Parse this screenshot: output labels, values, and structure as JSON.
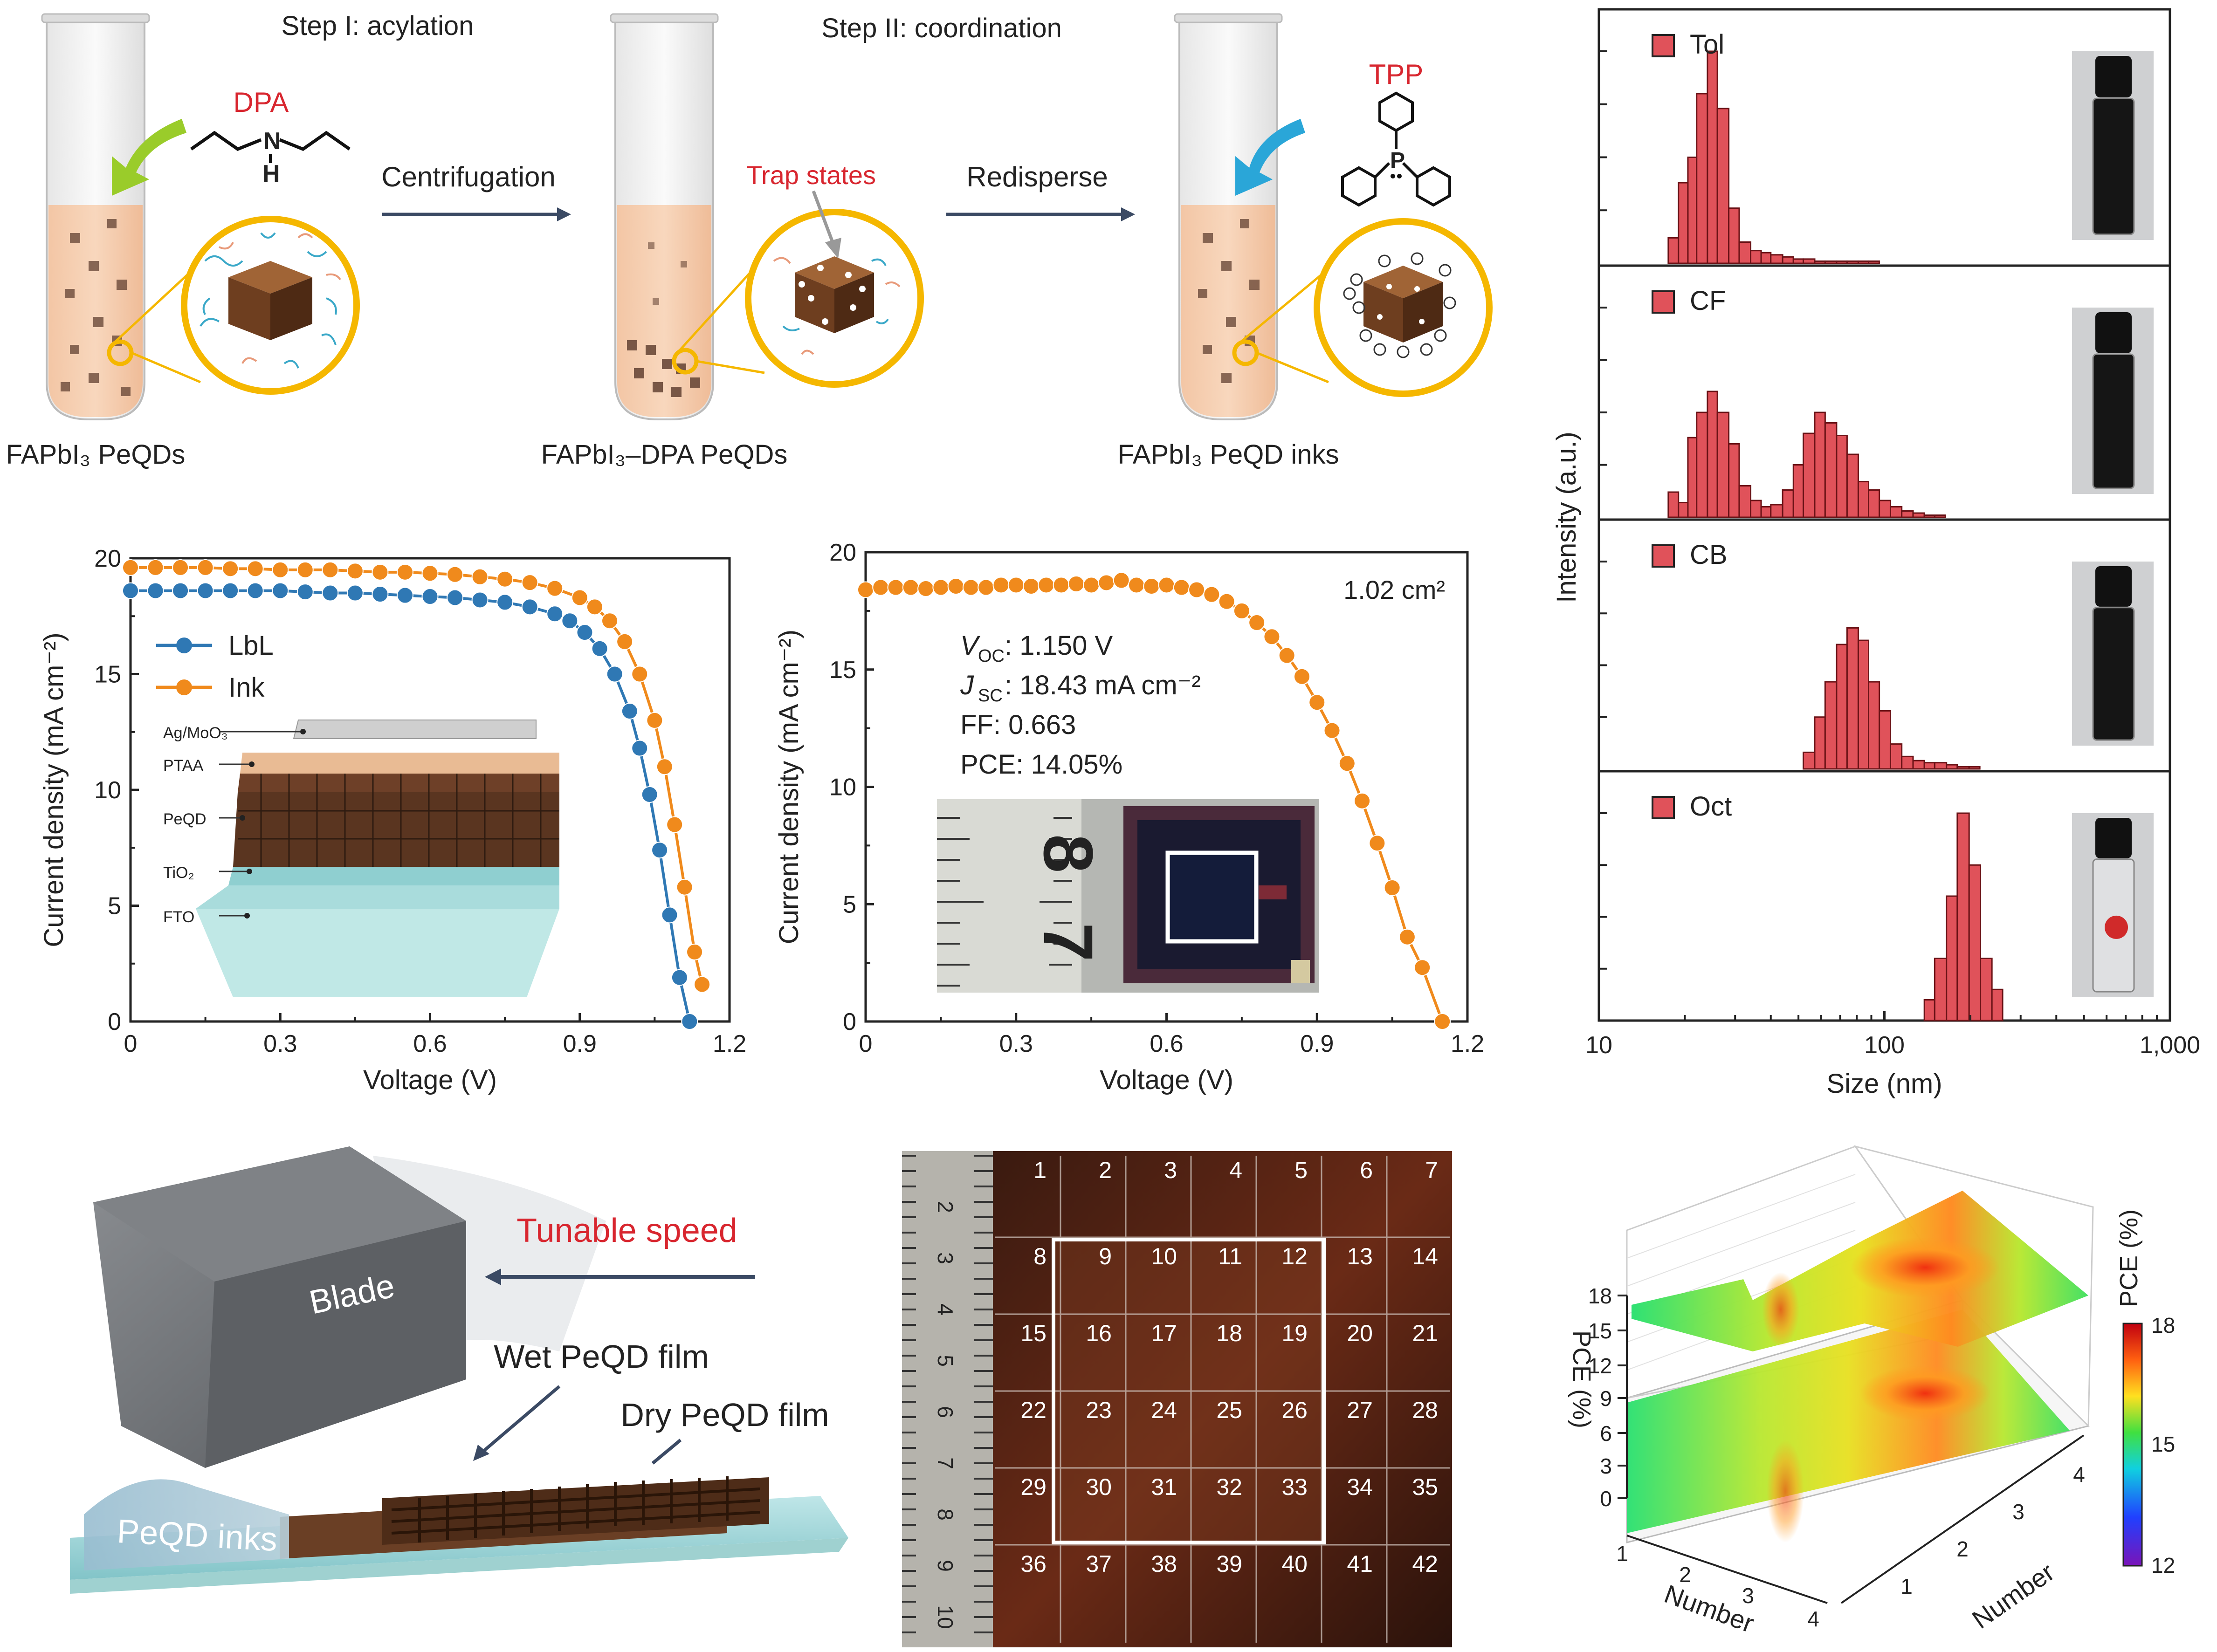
{
  "schematic": {
    "step1": "Step I: acylation",
    "step2": "Step II: coordination",
    "dpa": "DPA",
    "tpp": "TPP",
    "centrifugation": "Centrifugation",
    "redisperse": "Redisperse",
    "trap_states": "Trap states",
    "label1": "FAPbI₃ PeQDs",
    "label2": "FAPbI₃–DPA PeQDs",
    "label3": "FAPbI₃ PeQD inks"
  },
  "jv_small": {
    "device_layers": [
      "Ag/MoO₃",
      "PTAA",
      "PeQD",
      "TiO₂",
      "FTO"
    ]
  },
  "jv_large": {
    "area": "1.02 cm²",
    "voc": "V",
    "voc_sub": "OC",
    "voc_val": ": 1.150 V",
    "jsc": "J",
    "jsc_sub": "SC",
    "jsc_val": ": 18.43 mA cm⁻²",
    "ff": "FF: 0.663",
    "pce": "PCE: 14.05%",
    "ruler_digits": [
      "8",
      "7"
    ]
  },
  "blade": {
    "speed": "Tunable speed",
    "blade": "Blade",
    "wet": "Wet PeQD film",
    "dry": "Dry PeQD film",
    "inks": "PeQD inks"
  },
  "grid": {
    "numbers": [
      "1",
      "2",
      "3",
      "4",
      "5",
      "6",
      "7",
      "8",
      "9",
      "10",
      "11",
      "12",
      "13",
      "14",
      "15",
      "16",
      "17",
      "18",
      "19",
      "20",
      "21",
      "22",
      "23",
      "24",
      "25",
      "26",
      "27",
      "28",
      "29",
      "30",
      "31",
      "32",
      "33",
      "34",
      "35",
      "36",
      "37",
      "38",
      "39",
      "40",
      "41",
      "42"
    ],
    "ruler": [
      "2",
      "3",
      "4",
      "5",
      "6",
      "7",
      "8",
      "9",
      "10"
    ]
  },
  "chart_data": [
    {
      "type": "line",
      "xlabel": "Voltage (V)",
      "ylabel": "Current density (mA cm⁻²)",
      "xlim": [
        0,
        1.2
      ],
      "ylim": [
        0,
        20
      ],
      "xticks": [
        "0",
        "0.3",
        "0.6",
        "0.9",
        "1.2"
      ],
      "yticks": [
        "0",
        "5",
        "10",
        "15",
        "20"
      ],
      "legend": "upper-left",
      "series": [
        {
          "name": "LbL",
          "color": "#2f78b4",
          "x": [
            0,
            0.05,
            0.1,
            0.15,
            0.2,
            0.25,
            0.3,
            0.35,
            0.4,
            0.45,
            0.5,
            0.55,
            0.6,
            0.65,
            0.7,
            0.75,
            0.8,
            0.85,
            0.88,
            0.91,
            0.94,
            0.97,
            1.0,
            1.02,
            1.04,
            1.06,
            1.08,
            1.1,
            1.12
          ],
          "y": [
            18.6,
            18.6,
            18.6,
            18.6,
            18.6,
            18.6,
            18.6,
            18.55,
            18.5,
            18.5,
            18.45,
            18.4,
            18.35,
            18.3,
            18.2,
            18.1,
            17.9,
            17.6,
            17.3,
            16.8,
            16.1,
            15.0,
            13.4,
            11.8,
            9.8,
            7.4,
            4.6,
            1.9,
            0
          ]
        },
        {
          "name": "Ink",
          "color": "#f08a1c",
          "x": [
            0,
            0.05,
            0.1,
            0.15,
            0.2,
            0.25,
            0.3,
            0.35,
            0.4,
            0.45,
            0.5,
            0.55,
            0.6,
            0.65,
            0.7,
            0.75,
            0.8,
            0.85,
            0.9,
            0.93,
            0.96,
            0.99,
            1.02,
            1.05,
            1.07,
            1.09,
            1.11,
            1.13,
            1.145
          ],
          "y": [
            19.6,
            19.6,
            19.6,
            19.6,
            19.55,
            19.55,
            19.5,
            19.5,
            19.5,
            19.45,
            19.4,
            19.4,
            19.35,
            19.3,
            19.2,
            19.1,
            18.95,
            18.7,
            18.3,
            17.9,
            17.3,
            16.4,
            15.0,
            13.0,
            11.0,
            8.5,
            5.8,
            3.0,
            1.6
          ]
        }
      ]
    },
    {
      "type": "line",
      "xlabel": "Voltage (V)",
      "ylabel": "Current density (mA cm⁻²)",
      "xlim": [
        0,
        1.2
      ],
      "ylim": [
        0,
        20
      ],
      "xticks": [
        "0",
        "0.3",
        "0.6",
        "0.9",
        "1.2"
      ],
      "yticks": [
        "0",
        "5",
        "10",
        "15",
        "20"
      ],
      "series": [
        {
          "color": "#f08a1c",
          "x": [
            0,
            0.03,
            0.06,
            0.09,
            0.12,
            0.15,
            0.18,
            0.21,
            0.24,
            0.27,
            0.3,
            0.33,
            0.36,
            0.39,
            0.42,
            0.45,
            0.48,
            0.51,
            0.54,
            0.57,
            0.6,
            0.63,
            0.66,
            0.69,
            0.72,
            0.75,
            0.78,
            0.81,
            0.84,
            0.87,
            0.9,
            0.93,
            0.96,
            0.99,
            1.02,
            1.05,
            1.08,
            1.11,
            1.15
          ],
          "y": [
            18.4,
            18.5,
            18.5,
            18.5,
            18.45,
            18.5,
            18.55,
            18.5,
            18.5,
            18.6,
            18.6,
            18.55,
            18.6,
            18.6,
            18.65,
            18.6,
            18.7,
            18.8,
            18.6,
            18.55,
            18.6,
            18.5,
            18.4,
            18.2,
            17.9,
            17.5,
            17.0,
            16.4,
            15.6,
            14.7,
            13.6,
            12.4,
            11.0,
            9.4,
            7.6,
            5.7,
            3.6,
            2.3,
            0
          ]
        }
      ]
    },
    {
      "type": "bar",
      "xlabel": "Size (nm)",
      "ylabel": "Intensity (a.u.)",
      "xscale": "log",
      "xlim": [
        10,
        1000
      ],
      "xticks": [
        "10",
        "100",
        "1,000"
      ],
      "panels": [
        {
          "name": "Tol",
          "bins": [
            17.5,
            19,
            20.5,
            22,
            24,
            26,
            28.5,
            31,
            34,
            37,
            40,
            44,
            48,
            52,
            57,
            62,
            68,
            74,
            81,
            88
          ],
          "values": [
            0.12,
            0.38,
            0.5,
            0.8,
            1.0,
            0.73,
            0.26,
            0.1,
            0.06,
            0.05,
            0.04,
            0.03,
            0.02,
            0.02,
            0.01,
            0.01,
            0.01,
            0.01,
            0.01,
            0.01
          ]
        },
        {
          "name": "CF",
          "bins": [
            17.5,
            19,
            20.5,
            22,
            24,
            26,
            28.5,
            31,
            34,
            37,
            40,
            44,
            48,
            52,
            57,
            62,
            68,
            74,
            81,
            88,
            96,
            105,
            115,
            126,
            138,
            150
          ],
          "values": [
            0.12,
            0.07,
            0.38,
            0.5,
            0.6,
            0.5,
            0.35,
            0.15,
            0.08,
            0.05,
            0.06,
            0.13,
            0.25,
            0.4,
            0.5,
            0.45,
            0.39,
            0.3,
            0.17,
            0.13,
            0.08,
            0.05,
            0.03,
            0.02,
            0.01,
            0.01
          ]
        },
        {
          "name": "CB",
          "bins": [
            52,
            57,
            62,
            68,
            74,
            81,
            88,
            96,
            105,
            115,
            126,
            138,
            150,
            165,
            180,
            198
          ],
          "values": [
            0.08,
            0.25,
            0.42,
            0.6,
            0.68,
            0.62,
            0.42,
            0.28,
            0.12,
            0.06,
            0.04,
            0.03,
            0.03,
            0.02,
            0.01,
            0.01
          ]
        },
        {
          "name": "Oct",
          "bins": [
            138,
            150,
            165,
            180,
            198,
            217,
            238
          ],
          "values": [
            0.1,
            0.3,
            0.6,
            1.0,
            0.75,
            0.3,
            0.15
          ]
        }
      ]
    },
    {
      "type": "heatmap",
      "zlabel": "PCE (%)",
      "xlabel": "Number",
      "ylabel": "Number",
      "zticks": [
        "0",
        "3",
        "6",
        "9",
        "12",
        "15",
        "18"
      ],
      "colorbar_ticks": [
        "12",
        "15",
        "18"
      ],
      "x_ticks": [
        "1",
        "2",
        "3",
        "4"
      ],
      "y_ticks": [
        "1",
        "2",
        "3",
        "4"
      ],
      "values": [
        [
          14.2,
          14.6,
          14.0,
          13.6
        ],
        [
          14.4,
          15.2,
          14.5,
          14.0
        ],
        [
          14.3,
          15.6,
          17.2,
          15.0
        ],
        [
          14.6,
          15.0,
          15.3,
          14.9
        ]
      ]
    }
  ]
}
